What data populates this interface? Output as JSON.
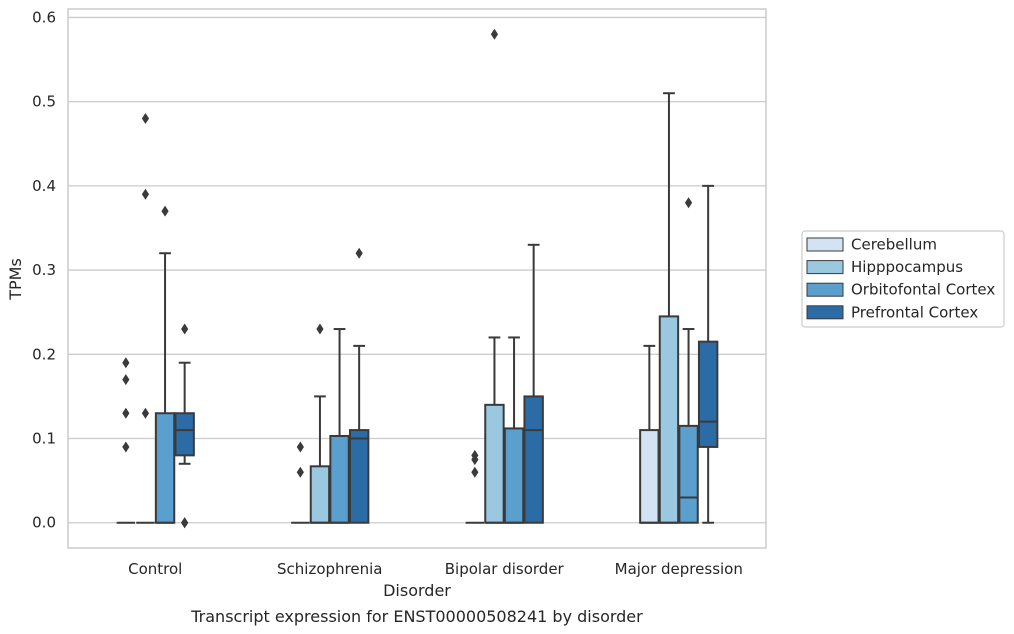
{
  "chart_data": {
    "type": "box",
    "xlabel": "Disorder",
    "ylabel": "TPMs",
    "caption": "Transcript expression for ENST00000508241 by disorder",
    "ylim": [
      -0.03,
      0.61
    ],
    "yticks": [
      0.0,
      0.1,
      0.2,
      0.3,
      0.4,
      0.5,
      0.6
    ],
    "ytick_labels": [
      "0.0",
      "0.1",
      "0.2",
      "0.3",
      "0.4",
      "0.5",
      "0.6"
    ],
    "grid": "horizontal",
    "legend_position": "right",
    "categories": [
      "Control",
      "Schizophrenia",
      "Bipolar disorder",
      "Major depression"
    ],
    "series": [
      {
        "name": "Cerebellum",
        "color": "#d3e3f3",
        "boxes": [
          {
            "q1": 0.0,
            "median": 0.0,
            "q3": 0.0,
            "whisker_low": 0.0,
            "whisker_high": 0.0,
            "outliers": [
              0.09,
              0.13,
              0.17,
              0.19
            ]
          },
          {
            "q1": 0.0,
            "median": 0.0,
            "q3": 0.0,
            "whisker_low": 0.0,
            "whisker_high": 0.0,
            "outliers": [
              0.06,
              0.09
            ]
          },
          {
            "q1": 0.0,
            "median": 0.0,
            "q3": 0.0,
            "whisker_low": 0.0,
            "whisker_high": 0.0,
            "outliers": [
              0.06,
              0.075,
              0.08
            ]
          },
          {
            "q1": 0.0,
            "median": 0.0,
            "q3": 0.11,
            "whisker_low": 0.0,
            "whisker_high": 0.21,
            "outliers": []
          }
        ]
      },
      {
        "name": "Hipppocampus",
        "color": "#9ac8e0",
        "boxes": [
          {
            "q1": 0.0,
            "median": 0.0,
            "q3": 0.0,
            "whisker_low": 0.0,
            "whisker_high": 0.0,
            "outliers": [
              0.13,
              0.39,
              0.48
            ]
          },
          {
            "q1": 0.0,
            "median": 0.0,
            "q3": 0.067,
            "whisker_low": 0.0,
            "whisker_high": 0.15,
            "outliers": [
              0.23
            ]
          },
          {
            "q1": 0.0,
            "median": 0.0,
            "q3": 0.14,
            "whisker_low": 0.0,
            "whisker_high": 0.22,
            "outliers": [
              0.58
            ]
          },
          {
            "q1": 0.0,
            "median": 0.0,
            "q3": 0.245,
            "whisker_low": 0.0,
            "whisker_high": 0.51,
            "outliers": []
          }
        ]
      },
      {
        "name": "Orbitofontal Cortex",
        "color": "#5a9fcd",
        "boxes": [
          {
            "q1": 0.0,
            "median": 0.0,
            "q3": 0.13,
            "whisker_low": 0.0,
            "whisker_high": 0.32,
            "outliers": [
              0.37
            ]
          },
          {
            "q1": 0.0,
            "median": 0.0,
            "q3": 0.103,
            "whisker_low": 0.0,
            "whisker_high": 0.23,
            "outliers": []
          },
          {
            "q1": 0.0,
            "median": 0.0,
            "q3": 0.112,
            "whisker_low": 0.0,
            "whisker_high": 0.22,
            "outliers": []
          },
          {
            "q1": 0.0,
            "median": 0.03,
            "q3": 0.115,
            "whisker_low": 0.0,
            "whisker_high": 0.23,
            "outliers": [
              0.38
            ]
          }
        ]
      },
      {
        "name": "Prefrontal Cortex",
        "color": "#2c6ca6",
        "boxes": [
          {
            "q1": 0.08,
            "median": 0.11,
            "q3": 0.13,
            "whisker_low": 0.07,
            "whisker_high": 0.19,
            "outliers": [
              0.0,
              0.0,
              0.23
            ]
          },
          {
            "q1": 0.0,
            "median": 0.1,
            "q3": 0.11,
            "whisker_low": 0.0,
            "whisker_high": 0.21,
            "outliers": [
              0.32
            ]
          },
          {
            "q1": 0.0,
            "median": 0.11,
            "q3": 0.15,
            "whisker_low": 0.0,
            "whisker_high": 0.33,
            "outliers": []
          },
          {
            "q1": 0.09,
            "median": 0.12,
            "q3": 0.215,
            "whisker_low": 0.0,
            "whisker_high": 0.4,
            "outliers": []
          }
        ]
      }
    ]
  }
}
